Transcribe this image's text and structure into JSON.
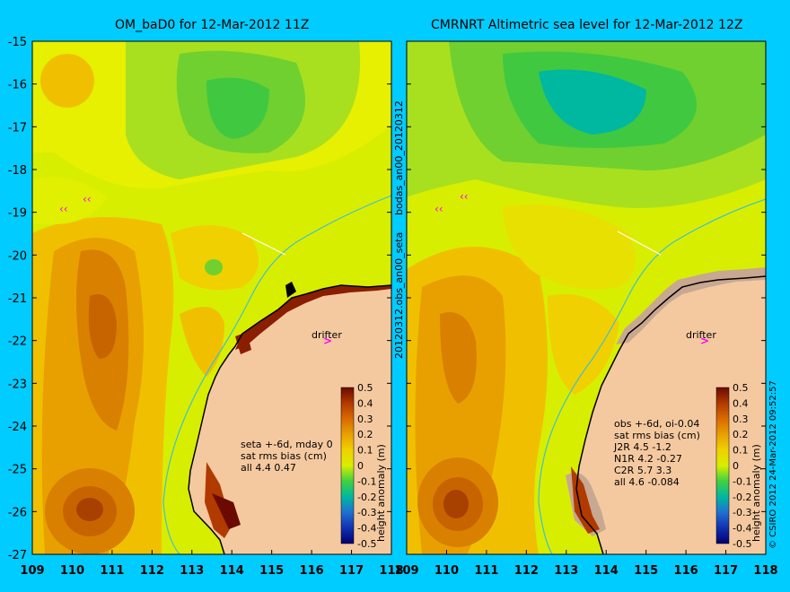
{
  "left": {
    "title": "OM_baD0 for 12-Mar-2012 11Z",
    "drifter_label": "drifter",
    "stats": [
      "seta +-6d, mday 0",
      "sat rms bias (cm)",
      "all 4.4 0.47"
    ]
  },
  "right": {
    "title": "CMRNRT Altimetric sea level  for 12-Mar-2012 12Z",
    "drifter_label": "drifter",
    "stats": [
      "obs +-6d, oi-0.04",
      "sat rms bias (cm)",
      "J2R  4.5 -1.2",
      "N1R  4.2 -0.27",
      "C2R  5.7 3.3",
      "all 4.6 -0.084"
    ]
  },
  "axes": {
    "lat_ticks": [
      "-15",
      "-16",
      "-17",
      "-18",
      "-19",
      "-20",
      "-21",
      "-22",
      "-23",
      "-24",
      "-25",
      "-26",
      "-27"
    ],
    "lon_ticks": [
      "109",
      "110",
      "111",
      "112",
      "113",
      "114",
      "115",
      "116",
      "117",
      "118"
    ]
  },
  "colorbar": {
    "label": "height anomaly (m)",
    "ticks": [
      "0.5",
      "0.4",
      "0.3",
      "0.2",
      "0.1",
      "0",
      "-0.1",
      "-0.2",
      "-0.3",
      "-0.4",
      "-0.5"
    ],
    "colors": [
      "#6b0a00",
      "#b03a00",
      "#d96a00",
      "#e8a000",
      "#f0d000",
      "#d8ee00",
      "#40d040",
      "#00b8a0",
      "#2070d0",
      "#1030b0",
      "#000070"
    ]
  },
  "side_labels": {
    "middle_top": "bodas_an00_20120312",
    "middle_bottom": "20120312.obs_an00_seta",
    "right_edge": "© CSIRO 2012  24-Mar-2012 09:52:57"
  },
  "colors": {
    "background": "#00ccff",
    "land": "#f5c9a0",
    "drifter_arrow": "#ff00ff"
  }
}
